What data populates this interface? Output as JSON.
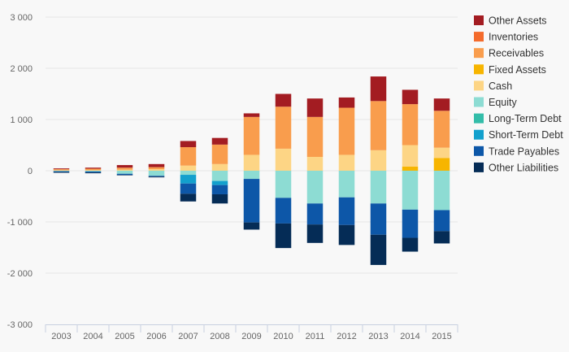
{
  "chart_data": {
    "type": "bar",
    "stacked": true,
    "categories": [
      "2003",
      "2004",
      "2005",
      "2006",
      "2007",
      "2008",
      "2009",
      "2010",
      "2011",
      "2012",
      "2013",
      "2014",
      "2015"
    ],
    "ylim": [
      -3000,
      3000
    ],
    "yticks": [
      3000,
      2000,
      1000,
      0,
      -1000,
      -2000,
      -3000
    ],
    "ytick_labels": [
      "3 000",
      "2 000",
      "1 000",
      "0",
      "-1 000",
      "-2 000",
      "-3 000"
    ],
    "grid": true,
    "legend_position": "right",
    "positive_series": [
      {
        "name": "Fixed Assets",
        "color": "#f7b500",
        "values": [
          0,
          0,
          0,
          0,
          0,
          0,
          0,
          0,
          0,
          0,
          0,
          80,
          250
        ]
      },
      {
        "name": "Cash",
        "color": "#fdd585",
        "values": [
          10,
          10,
          20,
          30,
          100,
          130,
          310,
          430,
          270,
          310,
          400,
          420,
          200
        ]
      },
      {
        "name": "Receivables",
        "color": "#f99d4d",
        "values": [
          20,
          30,
          40,
          40,
          360,
          380,
          740,
          820,
          780,
          920,
          960,
          800,
          720
        ]
      },
      {
        "name": "Inventories",
        "color": "#f46b2c",
        "values": [
          0,
          0,
          0,
          0,
          0,
          0,
          0,
          0,
          0,
          0,
          0,
          0,
          0
        ]
      },
      {
        "name": "Other Assets",
        "color": "#a31c22",
        "values": [
          15,
          20,
          50,
          60,
          120,
          130,
          70,
          250,
          360,
          200,
          480,
          280,
          240
        ]
      }
    ],
    "negative_series": [
      {
        "name": "Equity",
        "color": "#8ddcd3",
        "values": [
          -10,
          -15,
          -60,
          -100,
          -80,
          -200,
          -160,
          -530,
          -640,
          -520,
          -640,
          -760,
          -770
        ]
      },
      {
        "name": "Long-Term Debt",
        "color": "#33bda9",
        "values": [
          0,
          0,
          0,
          0,
          0,
          0,
          0,
          0,
          0,
          0,
          0,
          0,
          0
        ]
      },
      {
        "name": "Short-Term Debt",
        "color": "#12a0cd",
        "values": [
          0,
          0,
          0,
          0,
          -170,
          -80,
          0,
          0,
          0,
          0,
          0,
          0,
          0
        ]
      },
      {
        "name": "Trade Payables",
        "color": "#0d57a8",
        "values": [
          -15,
          -20,
          -20,
          -15,
          -200,
          -180,
          -850,
          -500,
          -410,
          -540,
          -610,
          -550,
          -410
        ]
      },
      {
        "name": "Other Liabilities",
        "color": "#052c56",
        "values": [
          -15,
          -15,
          -10,
          -15,
          -150,
          -180,
          -140,
          -480,
          -360,
          -390,
          -590,
          -270,
          -240
        ]
      }
    ],
    "legend": [
      {
        "name": "Other Assets",
        "color": "#a31c22"
      },
      {
        "name": "Inventories",
        "color": "#f46b2c"
      },
      {
        "name": "Receivables",
        "color": "#f99d4d"
      },
      {
        "name": "Fixed Assets",
        "color": "#f7b500"
      },
      {
        "name": "Cash",
        "color": "#fdd585"
      },
      {
        "name": "Equity",
        "color": "#8ddcd3"
      },
      {
        "name": "Long-Term Debt",
        "color": "#33bda9"
      },
      {
        "name": "Short-Term Debt",
        "color": "#12a0cd"
      },
      {
        "name": "Trade Payables",
        "color": "#0d57a8"
      },
      {
        "name": "Other Liabilities",
        "color": "#052c56"
      }
    ]
  }
}
